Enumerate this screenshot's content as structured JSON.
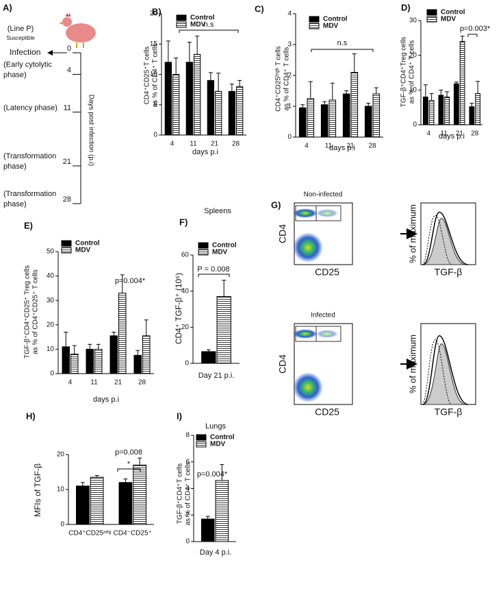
{
  "chart_data": [
    {
      "type": "bar",
      "panel": "B)",
      "ylabel": [
        "CD4⁺CD25⁺T cells",
        "as % of CD4⁺ T cells"
      ],
      "xlabel": "days p.i",
      "categories": [
        "4",
        "11",
        "21",
        "28"
      ],
      "series": [
        {
          "name": "Control",
          "color": "#000000",
          "values": [
            12,
            12,
            9,
            7.2
          ],
          "errors": [
            3.5,
            3.3,
            1.3,
            1.2
          ]
        },
        {
          "name": "MDV",
          "color": "#ffffff",
          "pattern": "horizontal-lines",
          "values": [
            10,
            13.3,
            7.2,
            8
          ],
          "errors": [
            2.7,
            3,
            3,
            1
          ]
        }
      ],
      "ylim": [
        0,
        20
      ],
      "yticks": [
        0,
        5,
        10,
        15,
        20
      ],
      "legend": true,
      "annotations": [
        "n.s"
      ]
    },
    {
      "type": "bar",
      "panel": "C)",
      "ylabel": [
        "CD4⁺CD25ʰⁱᵍʰ T cells",
        "as % of CD4⁺ T cells"
      ],
      "xlabel": "days p.i",
      "categories": [
        "4",
        "11",
        "21",
        "28"
      ],
      "series": [
        {
          "name": "Control",
          "color": "#000000",
          "values": [
            0.95,
            1.05,
            1.4,
            1.0
          ],
          "errors": [
            0.1,
            0.1,
            0.1,
            0.1
          ]
        },
        {
          "name": "MDV",
          "color": "#ffffff",
          "pattern": "horizontal-lines",
          "values": [
            1.25,
            1.2,
            2.1,
            1.4
          ],
          "errors": [
            0.55,
            0.55,
            0.6,
            0.2
          ]
        }
      ],
      "ylim": [
        0,
        4
      ],
      "yticks": [
        0,
        1,
        2,
        3,
        4
      ],
      "legend": true,
      "annotations": [
        "n.s"
      ]
    },
    {
      "type": "bar",
      "panel": "D)",
      "ylabel": [
        "TGF-β⁺CD4⁺Treg cells",
        "as % of CD4⁺ T cells"
      ],
      "xlabel": "days p.i",
      "categories": [
        "4",
        "11",
        "21",
        "28"
      ],
      "series": [
        {
          "name": "Control",
          "color": "#000000",
          "values": [
            8,
            8.5,
            11.8,
            5.2
          ],
          "errors": [
            3.5,
            1.5,
            0.5,
            1
          ]
        },
        {
          "name": "MDV",
          "color": "#ffffff",
          "pattern": "horizontal-lines",
          "values": [
            7,
            8,
            24,
            9
          ],
          "errors": [
            2,
            1.5,
            1.5,
            3.5
          ]
        }
      ],
      "ylim": [
        0,
        30
      ],
      "yticks": [
        0,
        10,
        20,
        30
      ],
      "legend": true,
      "annotations": [
        "p=0.003*"
      ]
    },
    {
      "type": "bar",
      "panel": "E)",
      "ylabel": [
        "TGF-β⁺CD4⁺CD25⁺ Treg cells",
        "as % of CD4⁺CD25⁺ T cells"
      ],
      "xlabel": "days p.i",
      "categories": [
        "4",
        "11",
        "21",
        "28"
      ],
      "series": [
        {
          "name": "Control",
          "color": "#000000",
          "values": [
            11,
            10,
            15.5,
            7.5
          ],
          "errors": [
            6,
            2,
            1.5,
            2
          ]
        },
        {
          "name": "MDV",
          "color": "#ffffff",
          "pattern": "horizontal-lines",
          "values": [
            8,
            10,
            33,
            15.5
          ],
          "errors": [
            3.5,
            2,
            7.5,
            6.5
          ]
        }
      ],
      "ylim": [
        0,
        50
      ],
      "yticks": [
        0,
        10,
        20,
        30,
        40,
        50
      ],
      "legend": true,
      "annotations": [
        "p=0.004*"
      ]
    },
    {
      "type": "bar",
      "panel": "F)",
      "title": "Spleens",
      "ylabel": [
        "CD4⁺ TGF-β⁺ (10⁵)"
      ],
      "xlabel": "Day 21 p.i.",
      "categories": [
        null
      ],
      "series": [
        {
          "name": "Control",
          "color": "#000000",
          "values": [
            6.5
          ],
          "errors": [
            1
          ]
        },
        {
          "name": "MDV",
          "color": "#ffffff",
          "pattern": "horizontal-lines",
          "values": [
            37
          ],
          "errors": [
            9
          ]
        }
      ],
      "ylim": [
        0,
        60
      ],
      "yticks": [
        0,
        20,
        40,
        60
      ],
      "legend": true,
      "annotations": [
        "P = 0.008"
      ]
    },
    {
      "type": "bar",
      "panel": "H)",
      "ylabel": [
        "MFIs  of  TGF-β"
      ],
      "categories": [
        "CD4⁺CD25ⁿᵉᵍ",
        "CD4⁻CD25⁺"
      ],
      "series": [
        {
          "name": "Control",
          "color": "#000000",
          "values": [
            11,
            12
          ],
          "errors": [
            1,
            1
          ]
        },
        {
          "name": "MDV",
          "color": "#ffffff",
          "pattern": "horizontal-lines",
          "values": [
            13.5,
            17
          ],
          "errors": [
            0.5,
            2
          ]
        }
      ],
      "ylim": [
        0,
        20
      ],
      "yticks": [
        0,
        10,
        20
      ],
      "legend": false,
      "annotations": [
        "p=0.008",
        "*"
      ]
    },
    {
      "type": "bar",
      "panel": "I)",
      "title": "Lungs",
      "ylabel": [
        "TGF-β⁺CD4⁺T cells",
        "as % of CD4⁺ T cells"
      ],
      "xlabel": "Day 4 p.i.",
      "categories": [
        null
      ],
      "series": [
        {
          "name": "Control",
          "color": "#000000",
          "values": [
            1.7
          ],
          "errors": [
            0.2
          ]
        },
        {
          "name": "MDV",
          "color": "#ffffff",
          "pattern": "horizontal-lines",
          "values": [
            4.6
          ],
          "errors": [
            1.2
          ]
        }
      ],
      "ylim": [
        0,
        8
      ],
      "yticks": [
        0,
        2,
        4,
        6,
        8
      ],
      "legend": true,
      "annotations": [
        "p=0.004*"
      ]
    }
  ],
  "timeline": {
    "panel": "A)",
    "line": "(Line P)",
    "susceptible": "Susceptible",
    "event": "Infection",
    "axis_label": "Days post infection (p.i)",
    "points": [
      {
        "day": 0,
        "phase": []
      },
      {
        "day": 4,
        "phase": [
          "(Early cytolytic",
          "phase)"
        ]
      },
      {
        "day": 11,
        "phase": [
          "(Latency phase)"
        ]
      },
      {
        "day": 21,
        "phase": [
          "(Transformation",
          "phase)"
        ]
      },
      {
        "day": 28,
        "phase": [
          "(Transformation",
          "phase)"
        ]
      }
    ]
  },
  "flow": {
    "panel": "G)",
    "rows": [
      {
        "title": "Non-infected"
      },
      {
        "title": "Infected"
      }
    ],
    "x_label": "CD25",
    "y_label": "CD4",
    "hist_x_label": "TGF-β",
    "hist_y_label": "% of maximum"
  }
}
